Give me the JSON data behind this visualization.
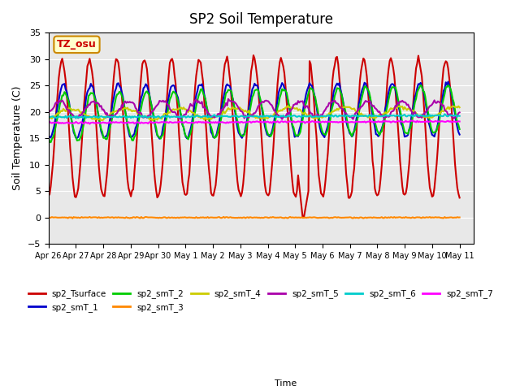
{
  "title": "SP2 Soil Temperature",
  "ylabel": "Soil Temperature (C)",
  "xlabel": "Time",
  "annotation": "TZ_osu",
  "ylim": [
    -5,
    35
  ],
  "background_color": "#e8e8e8",
  "series": {
    "sp2_Tsurface": {
      "color": "#cc0000",
      "lw": 1.5
    },
    "sp2_smT_1": {
      "color": "#0000cc",
      "lw": 1.5
    },
    "sp2_smT_2": {
      "color": "#00cc00",
      "lw": 1.5
    },
    "sp2_smT_3": {
      "color": "#ff8800",
      "lw": 1.5
    },
    "sp2_smT_4": {
      "color": "#cccc00",
      "lw": 1.5
    },
    "sp2_smT_5": {
      "color": "#aa00aa",
      "lw": 1.5
    },
    "sp2_smT_6": {
      "color": "#00cccc",
      "lw": 1.5
    },
    "sp2_smT_7": {
      "color": "#ff00ff",
      "lw": 1.5
    }
  },
  "xtick_labels": [
    "Apr 26",
    "Apr 27",
    "Apr 28",
    "Apr 29",
    "Apr 30",
    "May 1",
    "May 2",
    "May 3",
    "May 4",
    "May 5",
    "May 6",
    "May 7",
    "May 8",
    "May 9",
    "May 10",
    "May 11"
  ],
  "xtick_positions": [
    0,
    1,
    2,
    3,
    4,
    5,
    6,
    7,
    8,
    9,
    10,
    11,
    12,
    13,
    14,
    15
  ]
}
